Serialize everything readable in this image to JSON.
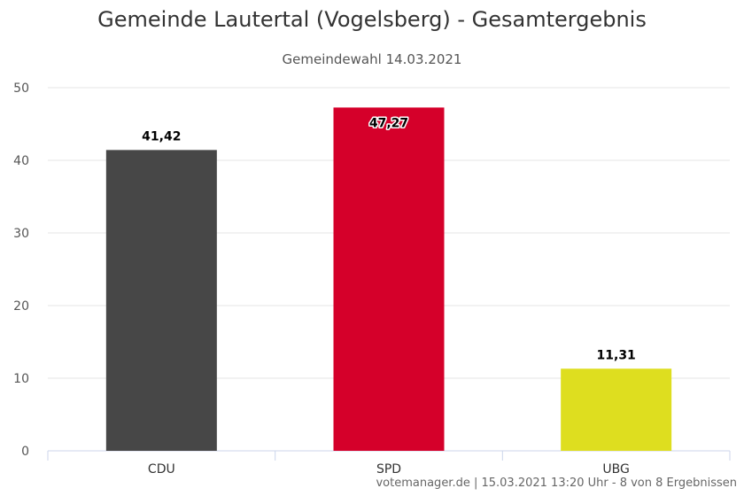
{
  "chart_data": {
    "type": "bar",
    "title": "Gemeinde Lautertal (Vogelsberg) - Gesamtergebnis",
    "subtitle": "Gemeindewahl 14.03.2021",
    "categories": [
      "CDU",
      "SPD",
      "UBG"
    ],
    "values": [
      41.42,
      47.27,
      11.31
    ],
    "value_labels": [
      "41,42",
      "47,27",
      "11,31"
    ],
    "colors": [
      "#474747",
      "#d5002a",
      "#dede1f"
    ],
    "ylim": [
      0,
      50
    ],
    "yticks": [
      0,
      10,
      20,
      30,
      40,
      50
    ],
    "ytick_labels": [
      "0",
      "10",
      "20",
      "30",
      "40",
      "50"
    ],
    "xlabel": "",
    "ylabel": "",
    "grid": true,
    "legend": "none"
  },
  "credits": "votemanager.de | 15.03.2021 13:20 Uhr - 8 von 8 Ergebnissen"
}
